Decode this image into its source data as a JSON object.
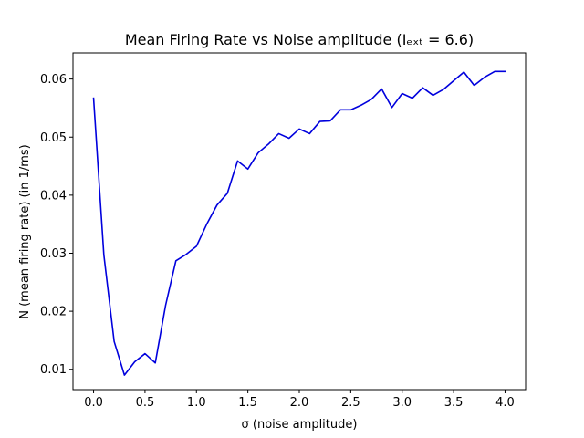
{
  "chart_data": {
    "type": "line",
    "title": "Mean Firing Rate vs Noise amplitude (Iₑₓₜ = 6.6)",
    "xlabel": "σ (noise amplitude)",
    "ylabel": "N (mean firing rate) (in 1/ms)",
    "xlim": [
      -0.2,
      4.2
    ],
    "ylim": [
      0.0065,
      0.0645
    ],
    "xticks": [
      0.0,
      0.5,
      1.0,
      1.5,
      2.0,
      2.5,
      3.0,
      3.5,
      4.0
    ],
    "xtick_labels": [
      "0.0",
      "0.5",
      "1.0",
      "1.5",
      "2.0",
      "2.5",
      "3.0",
      "3.5",
      "4.0"
    ],
    "yticks": [
      0.01,
      0.02,
      0.03,
      0.04,
      0.05,
      0.06
    ],
    "ytick_labels": [
      "0.01",
      "0.02",
      "0.03",
      "0.04",
      "0.05",
      "0.06"
    ],
    "grid": false,
    "series": [
      {
        "color": "#0000dd",
        "x": [
          0.0,
          0.1,
          0.2,
          0.3,
          0.4,
          0.5,
          0.6,
          0.7,
          0.8,
          0.9,
          1.0,
          1.1,
          1.2,
          1.3,
          1.4,
          1.5,
          1.6,
          1.7,
          1.8,
          1.9,
          2.0,
          2.1,
          2.2,
          2.3,
          2.4,
          2.5,
          2.6,
          2.7,
          2.8,
          2.9,
          3.0,
          3.1,
          3.2,
          3.3,
          3.4,
          3.5,
          3.6,
          3.7,
          3.8,
          3.9,
          4.0
        ],
        "y": [
          0.0567,
          0.0297,
          0.0148,
          0.009,
          0.0113,
          0.0127,
          0.0111,
          0.021,
          0.0287,
          0.0298,
          0.0312,
          0.035,
          0.0383,
          0.0403,
          0.0459,
          0.0445,
          0.0473,
          0.0488,
          0.0506,
          0.0498,
          0.0514,
          0.0506,
          0.0527,
          0.0528,
          0.0547,
          0.0547,
          0.0555,
          0.0565,
          0.0583,
          0.0551,
          0.0575,
          0.0567,
          0.0585,
          0.0572,
          0.0582,
          0.0597,
          0.0612,
          0.0589,
          0.0603,
          0.0613,
          0.0613
        ]
      }
    ]
  }
}
